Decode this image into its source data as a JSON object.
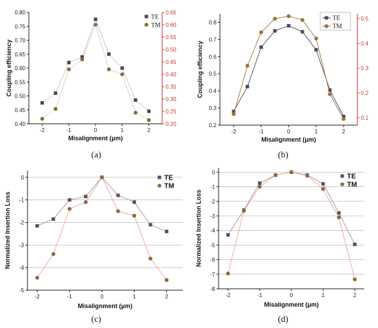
{
  "chart_data": [
    {
      "type": "scatter",
      "panel_label": "(a)",
      "xlabel": "Misalignment (μm)",
      "ylabel": "Coupling efficiency",
      "xlim": [
        -2.5,
        2.5
      ],
      "ylim": [
        0.4,
        0.8
      ],
      "xticks": [
        "-2",
        "-1",
        "0",
        "1",
        "2"
      ],
      "yticks": [
        "0.40",
        "0.45",
        "0.50",
        "0.55",
        "0.60",
        "0.65",
        "0.70",
        "0.75",
        "0.80"
      ],
      "y2lim": [
        0.2,
        0.65
      ],
      "y2ticks": [
        "0.20",
        "0.25",
        "0.30",
        "0.35",
        "0.40",
        "0.45",
        "0.50",
        "0.55",
        "0.60",
        "0.65"
      ],
      "grid": false,
      "legend_position": "top-right",
      "series": [
        {
          "name": "TE",
          "axis": "left",
          "color": "#4a4458",
          "marker": "square",
          "x": [
            -2,
            -1.5,
            -1,
            -0.5,
            0,
            0.5,
            1,
            1.5,
            2
          ],
          "y": [
            0.475,
            0.51,
            0.62,
            0.64,
            0.775,
            0.65,
            0.6,
            0.485,
            0.445
          ]
        },
        {
          "name": "TM",
          "axis": "right",
          "color": "#8b6a3a",
          "marker": "circle",
          "x": [
            -2,
            -1.5,
            -1,
            -0.5,
            0,
            0.5,
            1,
            1.5,
            2
          ],
          "y": [
            0.22,
            0.26,
            0.42,
            0.46,
            0.6,
            0.42,
            0.4,
            0.245,
            0.215
          ]
        }
      ]
    },
    {
      "type": "line",
      "panel_label": "(b)",
      "xlabel": "Misalignment (μm)",
      "ylabel": "Coupling efficiency",
      "xlim": [
        -2.5,
        2.5
      ],
      "ylim": [
        0.2,
        0.85
      ],
      "xticks": [
        "-2",
        "-1",
        "0",
        "1",
        "2"
      ],
      "yticks": [
        "0.2",
        "0.3",
        "0.4",
        "0.5",
        "0.6",
        "0.7",
        "0.8"
      ],
      "y2lim": [
        0.07,
        0.52
      ],
      "y2ticks": [
        "0.1",
        "0.2",
        "0.3",
        "0.4",
        "0.5"
      ],
      "grid": false,
      "legend_position": "top-right",
      "series": [
        {
          "name": "TE",
          "axis": "left",
          "color": "#4a4a5a",
          "marker": "square",
          "x": [
            -2,
            -1.5,
            -1,
            -0.5,
            0,
            0.5,
            1,
            1.5,
            2
          ],
          "y": [
            0.28,
            0.425,
            0.655,
            0.75,
            0.78,
            0.745,
            0.64,
            0.405,
            0.25
          ]
        },
        {
          "name": "TM",
          "axis": "right",
          "color": "#a0703a",
          "marker": "circle",
          "x": [
            -2,
            -1.5,
            -1,
            -0.5,
            0,
            0.5,
            1,
            1.5,
            2
          ],
          "y": [
            0.115,
            0.31,
            0.445,
            0.5,
            0.51,
            0.495,
            0.42,
            0.195,
            0.095
          ]
        }
      ]
    },
    {
      "type": "line",
      "panel_label": "(c)",
      "xlabel": "Misalignment (μm)",
      "ylabel": "Normalized Insertion Loss",
      "xlim": [
        -2.3,
        2.5
      ],
      "ylim": [
        -5,
        0.3
      ],
      "xticks": [
        "-2",
        "-1",
        "0",
        "1",
        "2"
      ],
      "yticks": [
        "-5",
        "-4",
        "-3",
        "-2",
        "-1",
        "0"
      ],
      "grid": true,
      "legend_position": "top-right",
      "series": [
        {
          "name": "TE",
          "color": "#5a4a68",
          "marker": "square",
          "line": "#9a9a9a",
          "x": [
            -2,
            -1.5,
            -1,
            -0.5,
            0,
            0.5,
            1,
            1.5,
            2
          ],
          "y": [
            -2.15,
            -1.85,
            -1.0,
            -0.85,
            0,
            -0.8,
            -1.1,
            -2.1,
            -2.4
          ]
        },
        {
          "name": "TM",
          "color": "#8b6a3a",
          "marker": "circle",
          "line": "#f0a0a0",
          "x": [
            -2,
            -1.5,
            -1,
            -0.5,
            0,
            0.5,
            1,
            1.5,
            2
          ],
          "y": [
            -4.45,
            -3.4,
            -1.4,
            -1.1,
            0,
            -1.5,
            -1.7,
            -3.6,
            -4.55
          ]
        }
      ]
    },
    {
      "type": "line",
      "panel_label": "(d)",
      "xlabel": "Misalignment (μm)",
      "ylabel": "Normalized Insertion Loss",
      "xlim": [
        -2.3,
        2.3
      ],
      "ylim": [
        -8,
        0.3
      ],
      "xticks": [
        "-2",
        "-1",
        "0",
        "1",
        "2"
      ],
      "yticks": [
        "-8",
        "-7",
        "-6",
        "-5",
        "-4",
        "-3",
        "-2",
        "-1",
        "0"
      ],
      "grid": true,
      "legend_position": "top-right",
      "series": [
        {
          "name": "TE",
          "color": "#5a4a68",
          "marker": "square",
          "line": "#9a9a9a",
          "x": [
            -2,
            -1.5,
            -1,
            -0.5,
            0,
            0.5,
            1,
            1.5,
            2
          ],
          "y": [
            -4.3,
            -2.6,
            -0.75,
            -0.2,
            0,
            -0.2,
            -0.8,
            -2.8,
            -4.95
          ]
        },
        {
          "name": "TM",
          "color": "#8b6a3a",
          "marker": "circle",
          "line": "#f0a0a0",
          "x": [
            -2,
            -1.5,
            -1,
            -0.5,
            0,
            0.5,
            1,
            1.5,
            2
          ],
          "y": [
            -6.95,
            -2.65,
            -1.0,
            -0.2,
            0,
            -0.25,
            -1.15,
            -3.1,
            -7.35
          ]
        }
      ]
    }
  ]
}
